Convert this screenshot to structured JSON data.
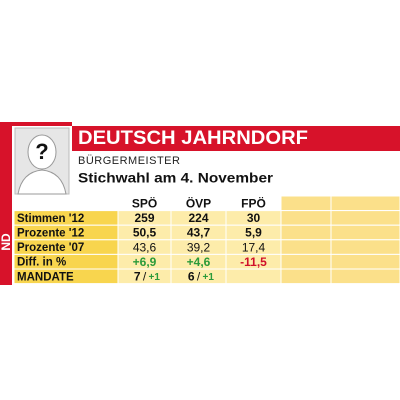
{
  "region": "ND",
  "header": {
    "title": "DEUTSCH JAHRNDORF",
    "subtitle": "BÜRGERMEISTER",
    "election": "Stichwahl am 4. November"
  },
  "portrait": "?",
  "table": {
    "columns": [
      "SPÖ",
      "ÖVP",
      "FPÖ"
    ],
    "rows": [
      {
        "label": "Stimmen '12",
        "cells": [
          "259",
          "224",
          "30"
        ]
      },
      {
        "label": "Prozente '12",
        "cells": [
          "50,5",
          "43,7",
          "5,9"
        ]
      },
      {
        "label": "Prozente '07",
        "cells": [
          "43,6",
          "39,2",
          "17,4"
        ]
      },
      {
        "label": "Diff. in %",
        "cells": [
          "+6,9",
          "+4,6",
          "-11,5"
        ]
      }
    ],
    "mandate": {
      "label": "MANDATE",
      "cells": [
        {
          "seats": "7",
          "change": "+1"
        },
        {
          "seats": "6",
          "change": "+1"
        }
      ]
    }
  }
}
